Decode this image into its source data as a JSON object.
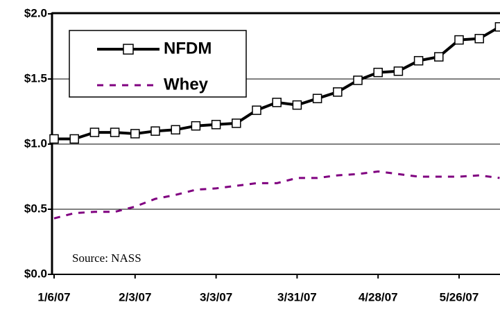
{
  "chart_data": {
    "type": "line",
    "categories": [
      "1/6/07",
      null,
      null,
      null,
      "2/3/07",
      null,
      null,
      null,
      "3/3/07",
      null,
      null,
      null,
      "3/31/07",
      null,
      null,
      null,
      "4/28/07",
      null,
      null,
      null,
      "5/26/07",
      null,
      null
    ],
    "series": [
      {
        "name": "NFDM",
        "color": "#000000",
        "values": [
          1.04,
          1.04,
          1.09,
          1.09,
          1.08,
          1.1,
          1.11,
          1.14,
          1.15,
          1.16,
          1.26,
          1.32,
          1.3,
          1.35,
          1.4,
          1.49,
          1.55,
          1.56,
          1.64,
          1.67,
          1.8,
          1.81,
          1.9
        ]
      },
      {
        "name": "Whey",
        "color": "#800080",
        "values": [
          0.43,
          0.47,
          0.48,
          0.48,
          0.52,
          0.58,
          0.61,
          0.65,
          0.66,
          0.68,
          0.7,
          0.7,
          0.74,
          0.74,
          0.76,
          0.77,
          0.79,
          0.77,
          0.75,
          0.75,
          0.75,
          0.76,
          0.74
        ]
      }
    ],
    "ylim": [
      0,
      2
    ],
    "yticks": [
      {
        "value": 0,
        "label": "$0.0"
      },
      {
        "value": 0.5,
        "label": "$0.5"
      },
      {
        "value": 1,
        "label": "$1.0"
      },
      {
        "value": 1.5,
        "label": "$1.5"
      },
      {
        "value": 2,
        "label": "$2.0"
      }
    ],
    "grid": true,
    "annotation": "Source: NASS"
  }
}
